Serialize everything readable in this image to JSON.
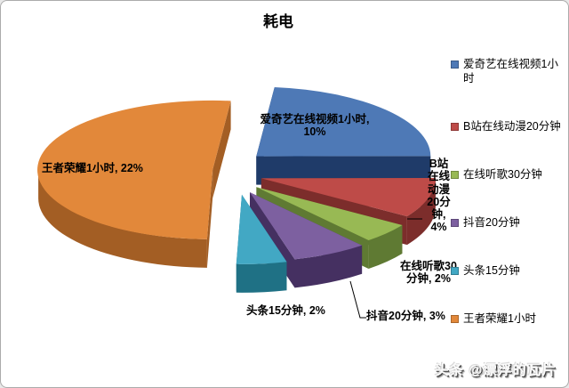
{
  "title": "耗电",
  "watermark": "头条 @漂浮的瓦片",
  "chart_data": {
    "type": "pie",
    "style": "3d-exploded",
    "title": "耗电",
    "legend_position": "right",
    "background": "#ffffff",
    "border_color": "#ababab",
    "value_unit": "%",
    "slices": [
      {
        "name": "爱奇艺在线视频1小时",
        "value": 10,
        "label": "爱奇艺在线视频1小时, 10%",
        "color": "#4E79B6",
        "dark": "#1F3B69"
      },
      {
        "name": "B站在线动漫20分钟",
        "value": 4,
        "label": "B站在线动漫20分钟, 4%",
        "color": "#BE4B48",
        "dark": "#7C2D2B"
      },
      {
        "name": "在线听歌30分钟",
        "value": 2,
        "label": "在线听歌30分钟, 2%",
        "color": "#98B954",
        "dark": "#5F7A33"
      },
      {
        "name": "抖音20分钟",
        "value": 3,
        "label": "抖音20分钟, 3%",
        "color": "#7D60A0",
        "dark": "#453061"
      },
      {
        "name": "头条15分钟",
        "value": 2,
        "label": "头条15分钟, 2%",
        "color": "#42A8C4",
        "dark": "#1F7185"
      },
      {
        "name": "王者荣耀1小时",
        "value": 22,
        "label": "王者荣耀1小时, 22%",
        "color": "#E2883A",
        "dark": "#A35E24"
      }
    ]
  }
}
